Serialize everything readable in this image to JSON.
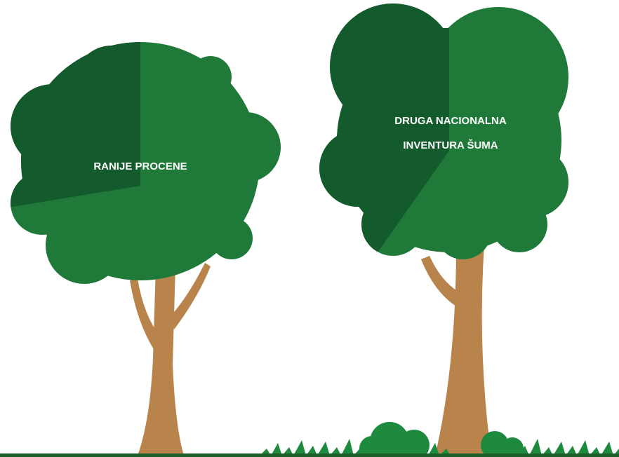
{
  "trees": [
    {
      "label_lines": [
        "RANIJE PROCENE"
      ]
    },
    {
      "label_lines": [
        "DRUGA NACIONALNA",
        "INVENTURA ŠUMA"
      ]
    }
  ]
}
